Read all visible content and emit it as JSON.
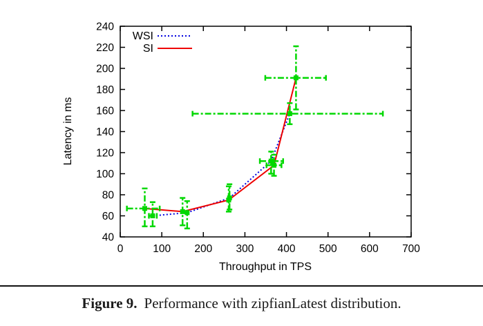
{
  "figure": {
    "caption_label": "Figure 9.",
    "caption_text": "Performance with zipfianLatest distribution."
  },
  "chart_data": {
    "type": "line",
    "title": "",
    "xlabel": "Throughput in TPS",
    "ylabel": "Latency in ms",
    "xlim": [
      0,
      700
    ],
    "ylim": [
      40,
      240
    ],
    "xtick_step": 100,
    "ytick_step": 20,
    "grid": false,
    "legend_position": "top-left-inside",
    "error_bar_color": "#00d800",
    "point_color": "#00d800",
    "series": [
      {
        "name": "WSI",
        "color": "#0000e0",
        "style": "dotted",
        "points": [
          {
            "x": 78,
            "y": 60,
            "xerr": [
              69,
              88
            ],
            "yerr": [
              50,
              73
            ]
          },
          {
            "x": 161,
            "y": 63,
            "xerr": null,
            "yerr": [
              48,
              74
            ]
          },
          {
            "x": 263,
            "y": 77,
            "xerr": null,
            "yerr": [
              66,
              90
            ]
          },
          {
            "x": 363,
            "y": 112,
            "xerr": [
              336,
              392
            ],
            "yerr": [
              100,
              121
            ]
          },
          {
            "x": 408,
            "y": 157,
            "xerr": [
              174,
              632
            ],
            "yerr": [
              147,
              167
            ]
          }
        ]
      },
      {
        "name": "SI",
        "color": "#ee0000",
        "style": "solid",
        "points": [
          {
            "x": 59,
            "y": 67,
            "xerr": [
              16,
              95
            ],
            "yerr": [
              50,
              86
            ]
          },
          {
            "x": 150,
            "y": 64,
            "xerr": null,
            "yerr": [
              51,
              77
            ]
          },
          {
            "x": 261,
            "y": 75,
            "xerr": null,
            "yerr": [
              64,
              88
            ]
          },
          {
            "x": 370,
            "y": 108,
            "xerr": [
              352,
              388
            ],
            "yerr": [
              98,
              118
            ]
          },
          {
            "x": 423,
            "y": 191,
            "xerr": [
              349,
              495
            ],
            "yerr": [
              161,
              221
            ]
          }
        ]
      }
    ]
  }
}
